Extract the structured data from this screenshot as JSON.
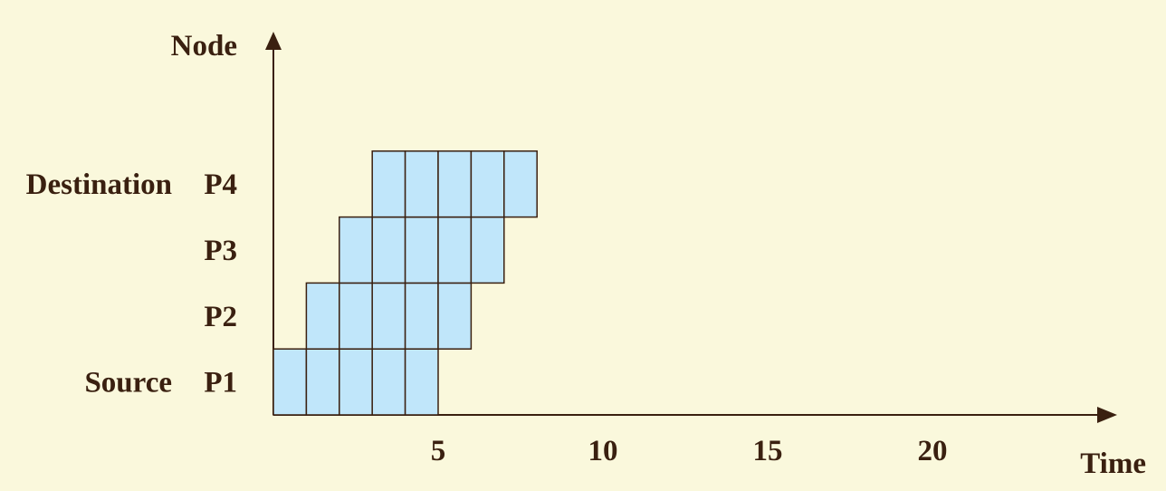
{
  "axes": {
    "y_label": "Node",
    "x_label": "Time"
  },
  "nodes": [
    {
      "id": "P1",
      "role": "Source",
      "start": 0,
      "duration": 5
    },
    {
      "id": "P2",
      "role": "",
      "start": 1,
      "duration": 5
    },
    {
      "id": "P3",
      "role": "",
      "start": 2,
      "duration": 5
    },
    {
      "id": "P4",
      "role": "Destination",
      "start": 3,
      "duration": 5
    }
  ],
  "x_ticks": [
    "5",
    "10",
    "15",
    "20"
  ],
  "x_tick_values": [
    5,
    10,
    15,
    20
  ],
  "x_range": [
    0,
    25.5
  ],
  "colors": {
    "background": "#faf8dc",
    "cell_fill": "#c0e6fa",
    "cell_stroke": "#3a2010",
    "axis": "#3a2010",
    "text": "#3a2010"
  }
}
